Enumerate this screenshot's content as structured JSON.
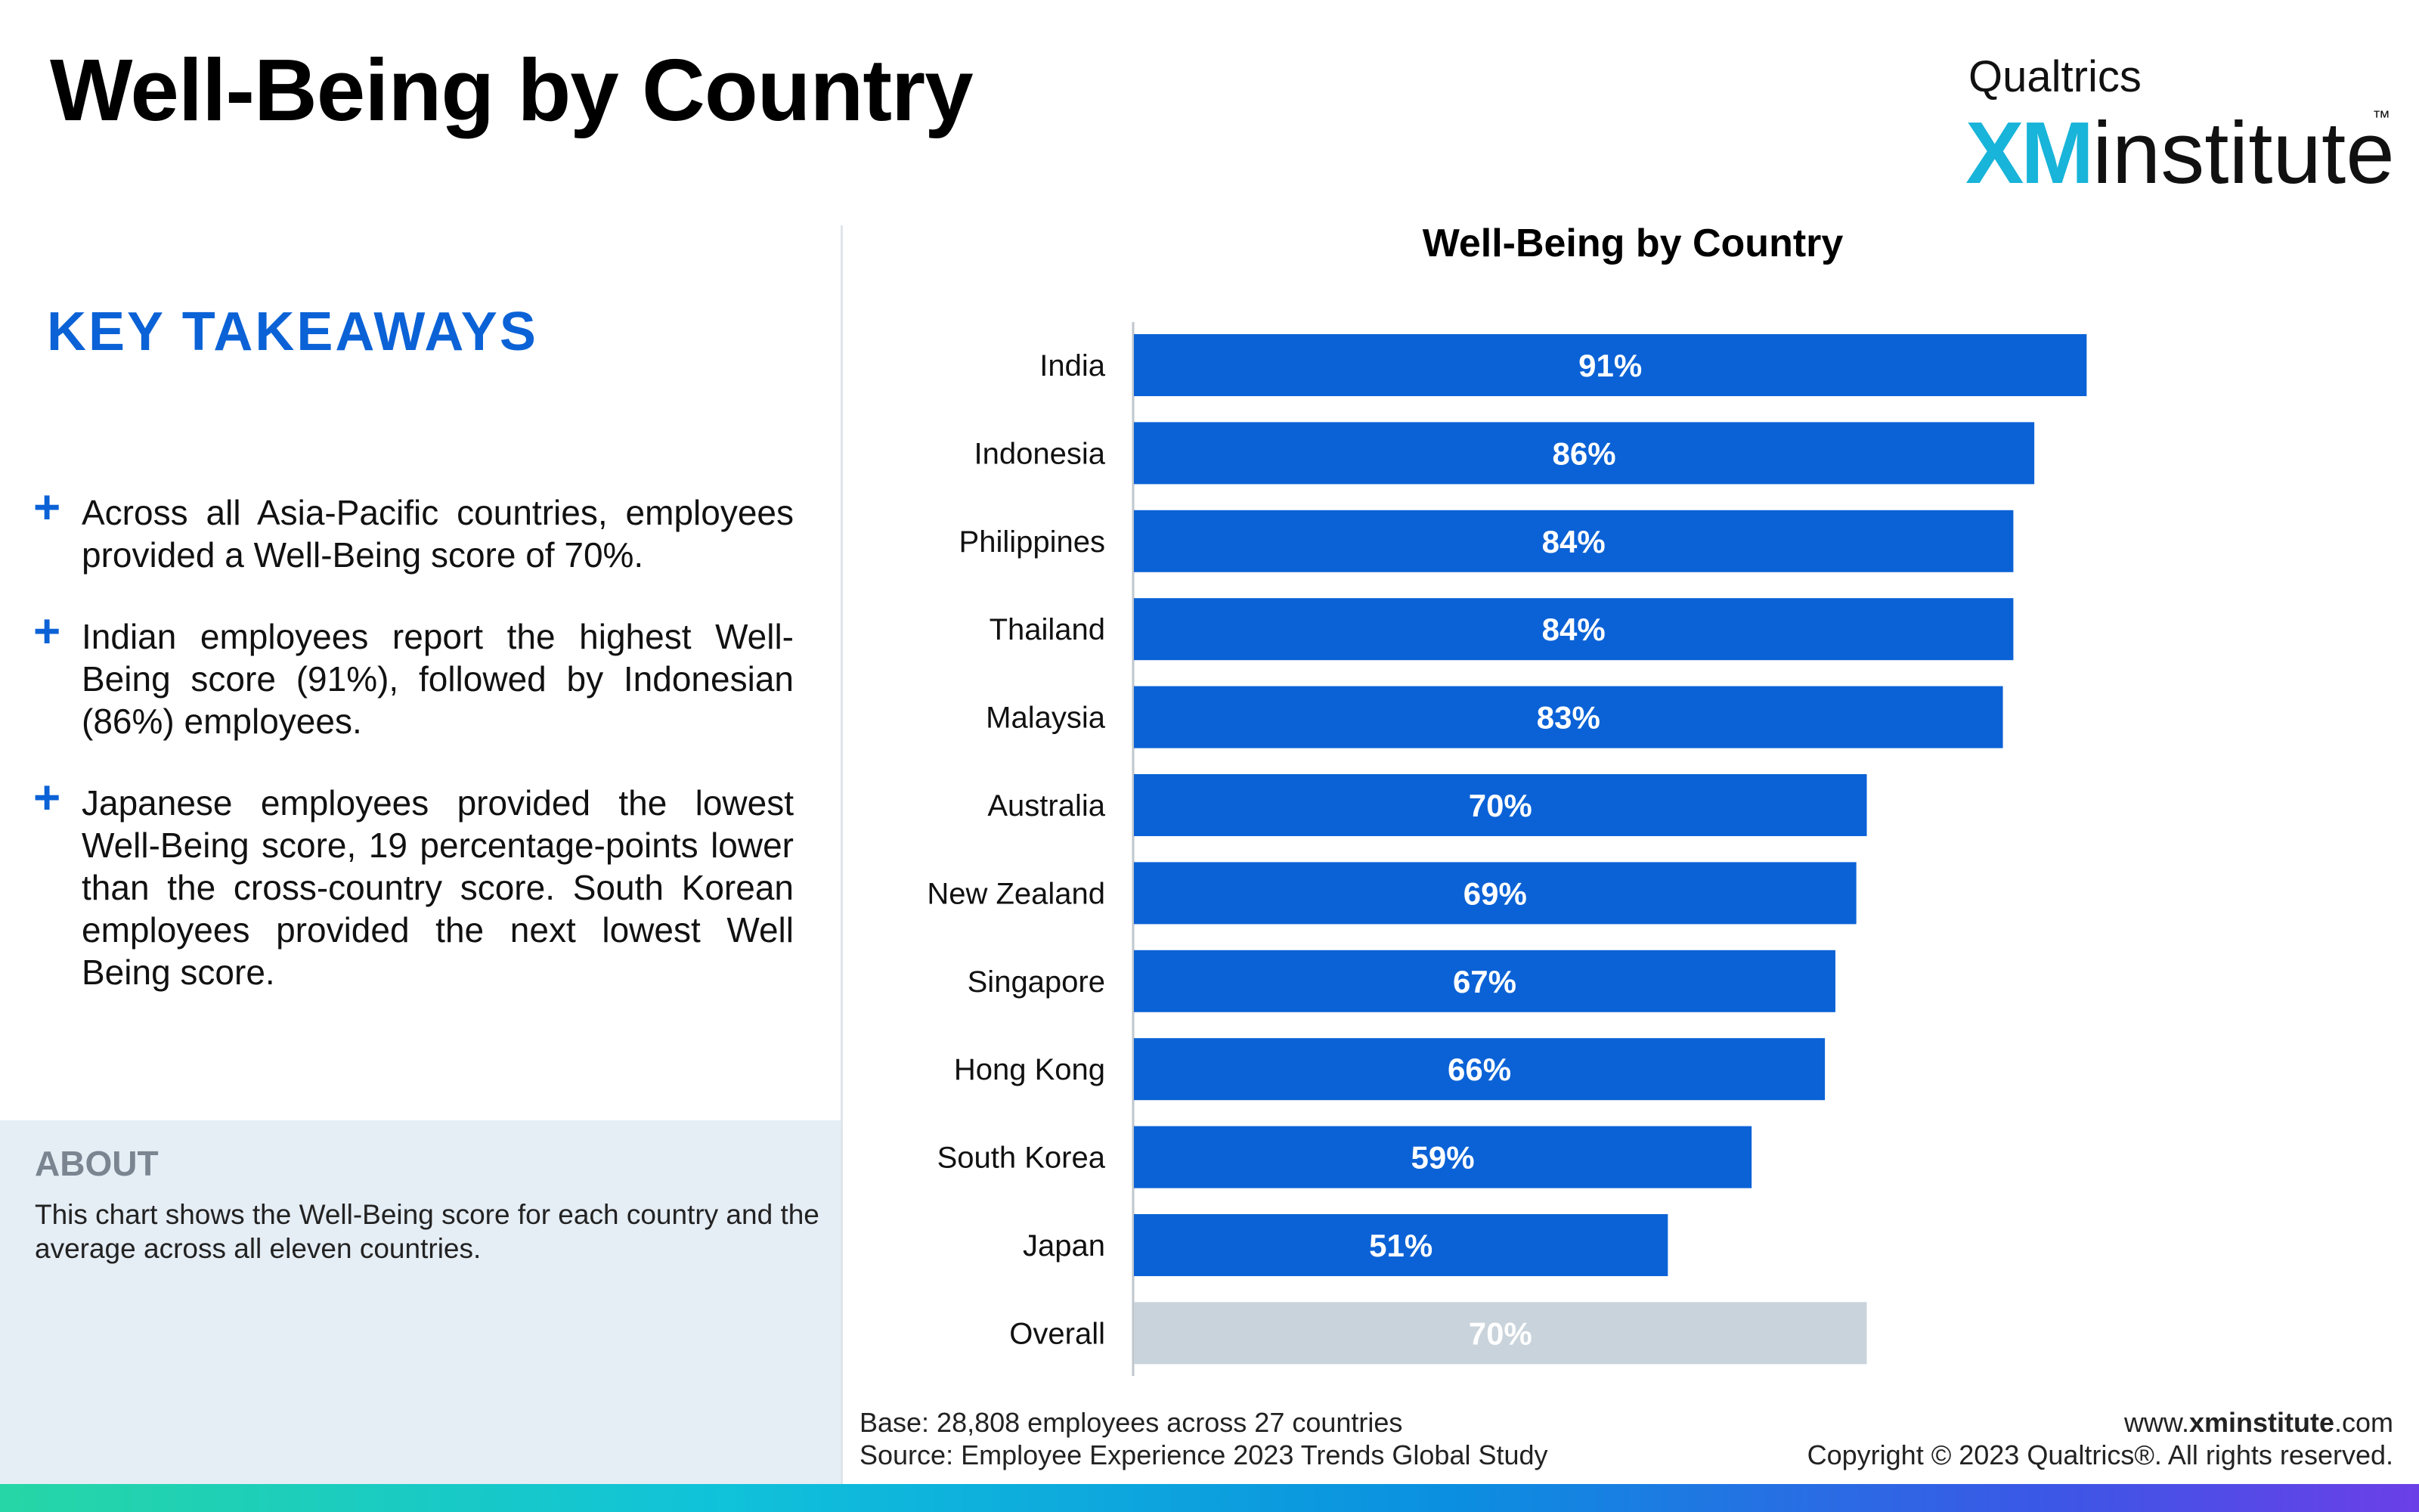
{
  "page": {
    "title": "Well-Being by Country"
  },
  "logo": {
    "brand": "Qualtrics",
    "xm": "XM",
    "institute": "institute",
    "tm": "™"
  },
  "takeaways": {
    "heading": "KEY TAKEAWAYS",
    "items": [
      "Across all Asia-Pacific countries, employees provided a Well-Being score of 70%.",
      "Indian employees report the highest Well-Being score (91%), followed by Indonesian (86%) employees.",
      "Japanese employees provided the lowest Well-Being score, 19 percentage-points lower than the cross-country score. South Korean employees provided the next lowest Well Being score."
    ]
  },
  "about": {
    "heading": "ABOUT",
    "text": "This chart shows the Well-Being score for each country and the average across all eleven countries."
  },
  "chart_data": {
    "type": "bar",
    "orientation": "horizontal",
    "title": "Well-Being by Country",
    "xlabel": "",
    "ylabel": "",
    "xlim": [
      0,
      100
    ],
    "grid": false,
    "categories": [
      "India",
      "Indonesia",
      "Philippines",
      "Thailand",
      "Malaysia",
      "Australia",
      "New Zealand",
      "Singapore",
      "Hong Kong",
      "South Korea",
      "Japan",
      "Overall"
    ],
    "values": [
      91,
      86,
      84,
      84,
      83,
      70,
      69,
      67,
      66,
      59,
      51,
      70
    ],
    "data_labels": [
      "91%",
      "86%",
      "84%",
      "84%",
      "83%",
      "70%",
      "69%",
      "67%",
      "66%",
      "59%",
      "51%",
      "70%"
    ],
    "colors": {
      "bar": "#0b62d6",
      "overall_bar": "#c9d3db",
      "label_text": "#ffffff",
      "axis": "#bfc6cc"
    }
  },
  "footer": {
    "base": "Base: 28,808 employees across 27 countries",
    "source": "Source: Employee Experience 2023 Trends Global Study",
    "url_prefix": "www.",
    "url_bold": "xminstitute",
    "url_suffix": ".com",
    "copyright": "Copyright © 2023 Qualtrics®. All rights reserved."
  },
  "colors": {
    "accent": "#0b62d6",
    "xm_cyan": "#18b4d9",
    "about_bg": "#e5edf5"
  }
}
